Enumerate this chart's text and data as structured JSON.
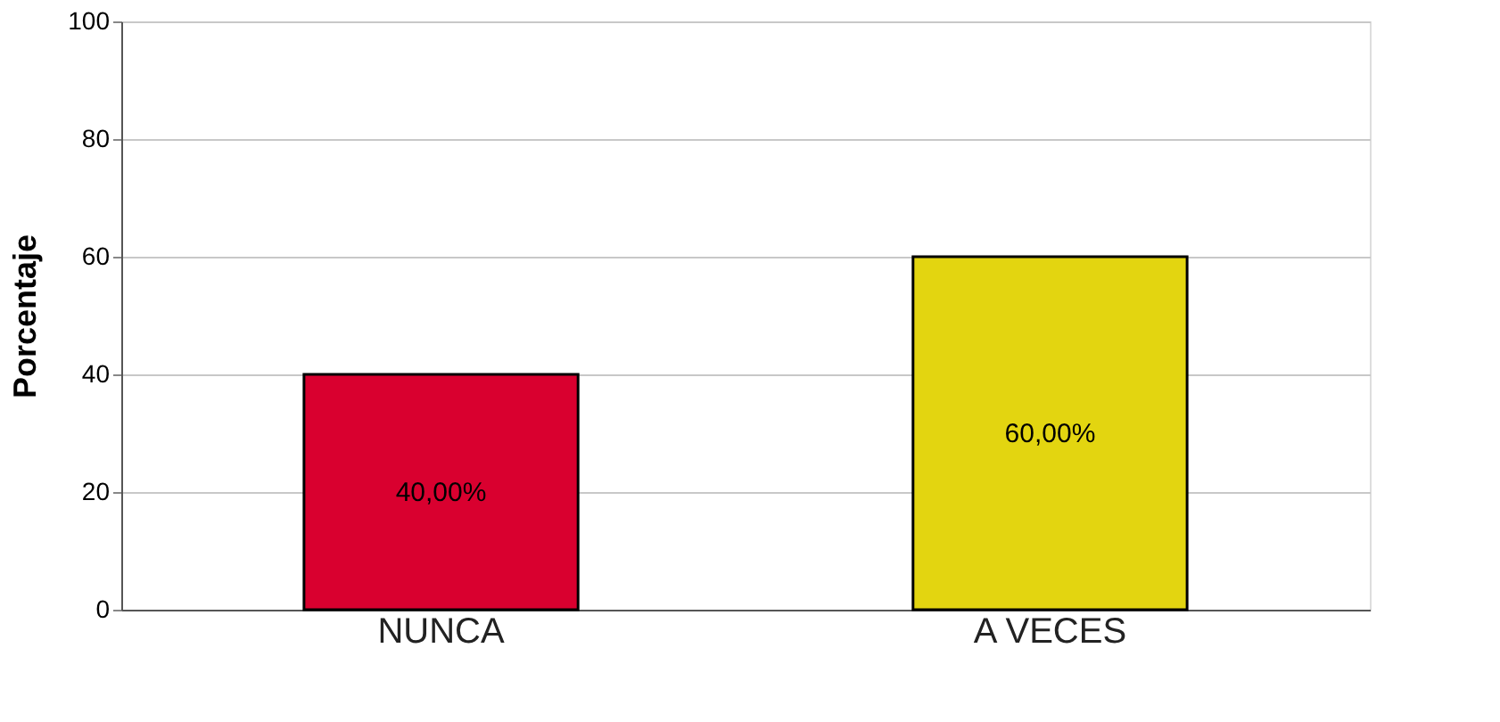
{
  "chart_data": {
    "type": "bar",
    "ylabel": "Porcentaje",
    "categories": [
      "NUNCA",
      "A VECES"
    ],
    "values": [
      40,
      60
    ],
    "colors": [
      "#d9002f",
      "#e3d510"
    ],
    "value_labels": [
      "40,00%",
      "60,00%"
    ],
    "ylim": [
      0,
      100
    ],
    "yticks": [
      0,
      20,
      40,
      60,
      80,
      100
    ],
    "grid": "y"
  }
}
